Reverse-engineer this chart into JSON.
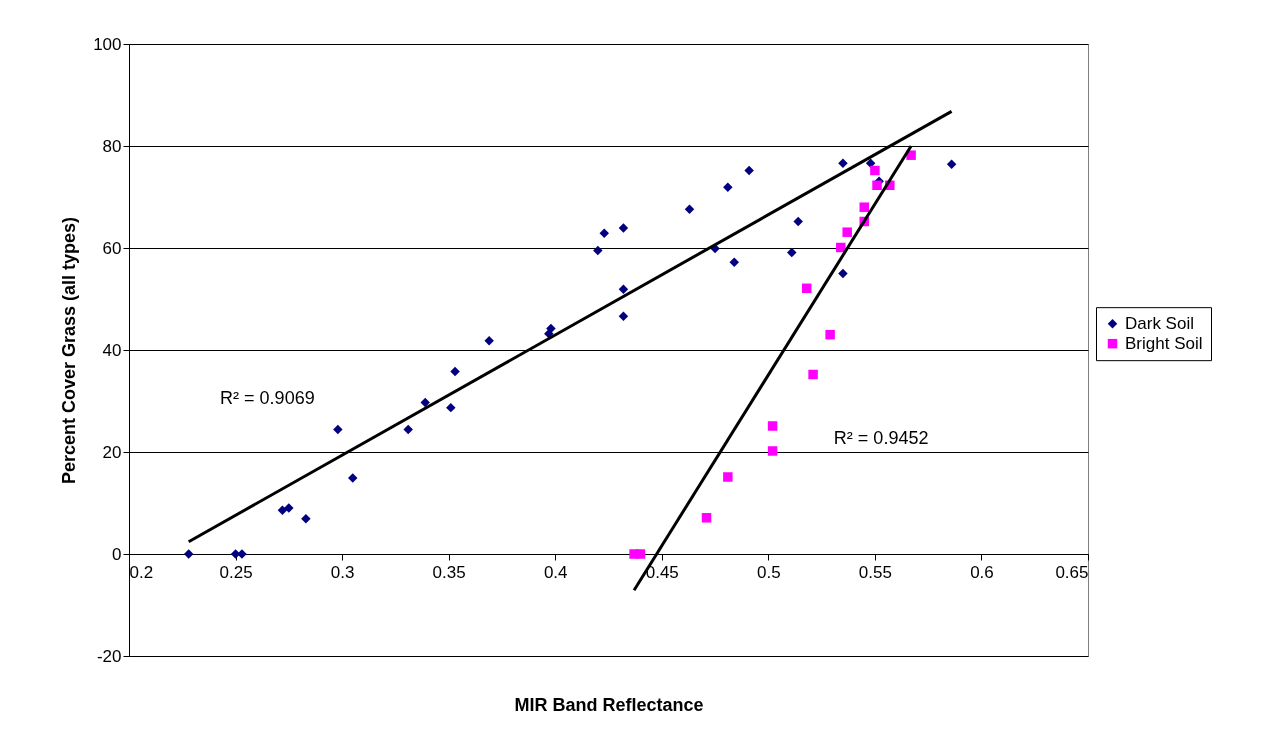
{
  "chart_data": {
    "type": "scatter",
    "xlabel": "MIR Band Reflectance",
    "ylabel": "Percent Cover Grass (all types)",
    "xlim": [
      0.2,
      0.65
    ],
    "xticks": [
      0.2,
      0.25,
      0.3,
      0.35,
      0.4,
      0.45,
      0.5,
      0.55,
      0.6,
      0.65
    ],
    "ylim": [
      -20,
      100
    ],
    "yticks": [
      -20,
      0,
      20,
      40,
      60,
      80,
      100
    ],
    "grid": "y",
    "legend": "right",
    "series": [
      {
        "name": "Dark Soil",
        "color": "#000080",
        "marker": "diamond",
        "x": [
          0.228,
          0.25,
          0.253,
          0.272,
          0.275,
          0.283,
          0.298,
          0.305,
          0.331,
          0.339,
          0.351,
          0.353,
          0.369,
          0.397,
          0.398,
          0.42,
          0.423,
          0.432,
          0.432,
          0.432,
          0.463,
          0.475,
          0.481,
          0.484,
          0.491,
          0.511,
          0.514,
          0.535,
          0.535,
          0.548,
          0.552,
          0.586
        ],
        "values": [
          0,
          0,
          0,
          8.6,
          9,
          6.9,
          24.4,
          14.9,
          24.4,
          29.7,
          28.7,
          35.8,
          41.8,
          43.2,
          44.2,
          59.5,
          62.9,
          63.9,
          51.9,
          46.6,
          67.6,
          59.9,
          71.9,
          57.2,
          75.2,
          59.1,
          65.2,
          55,
          76.6,
          76.6,
          73.1,
          76.4
        ]
      },
      {
        "name": "Bright Soil",
        "color": "#ff00ff",
        "marker": "square",
        "x": [
          0.437,
          0.44,
          0.471,
          0.481,
          0.502,
          0.502,
          0.518,
          0.521,
          0.529,
          0.534,
          0.537,
          0.545,
          0.545,
          0.55,
          0.551,
          0.557,
          0.567
        ],
        "values": [
          0,
          0,
          7.1,
          15.1,
          20.2,
          25.1,
          52.1,
          35.2,
          43,
          60.1,
          63.1,
          65.2,
          68,
          75.2,
          72.3,
          72.3,
          78.2
        ]
      },
      {
        "type": "line",
        "color": "#000000",
        "x": [
          0.228,
          0.586
        ],
        "values": [
          2.4,
          86.8
        ]
      },
      {
        "type": "line",
        "color": "#000000",
        "x": [
          0.437,
          0.567
        ],
        "values": [
          -7.1,
          80
        ]
      }
    ],
    "annotations": [
      "R² = 0.9069",
      "R² = 0.9452"
    ]
  }
}
